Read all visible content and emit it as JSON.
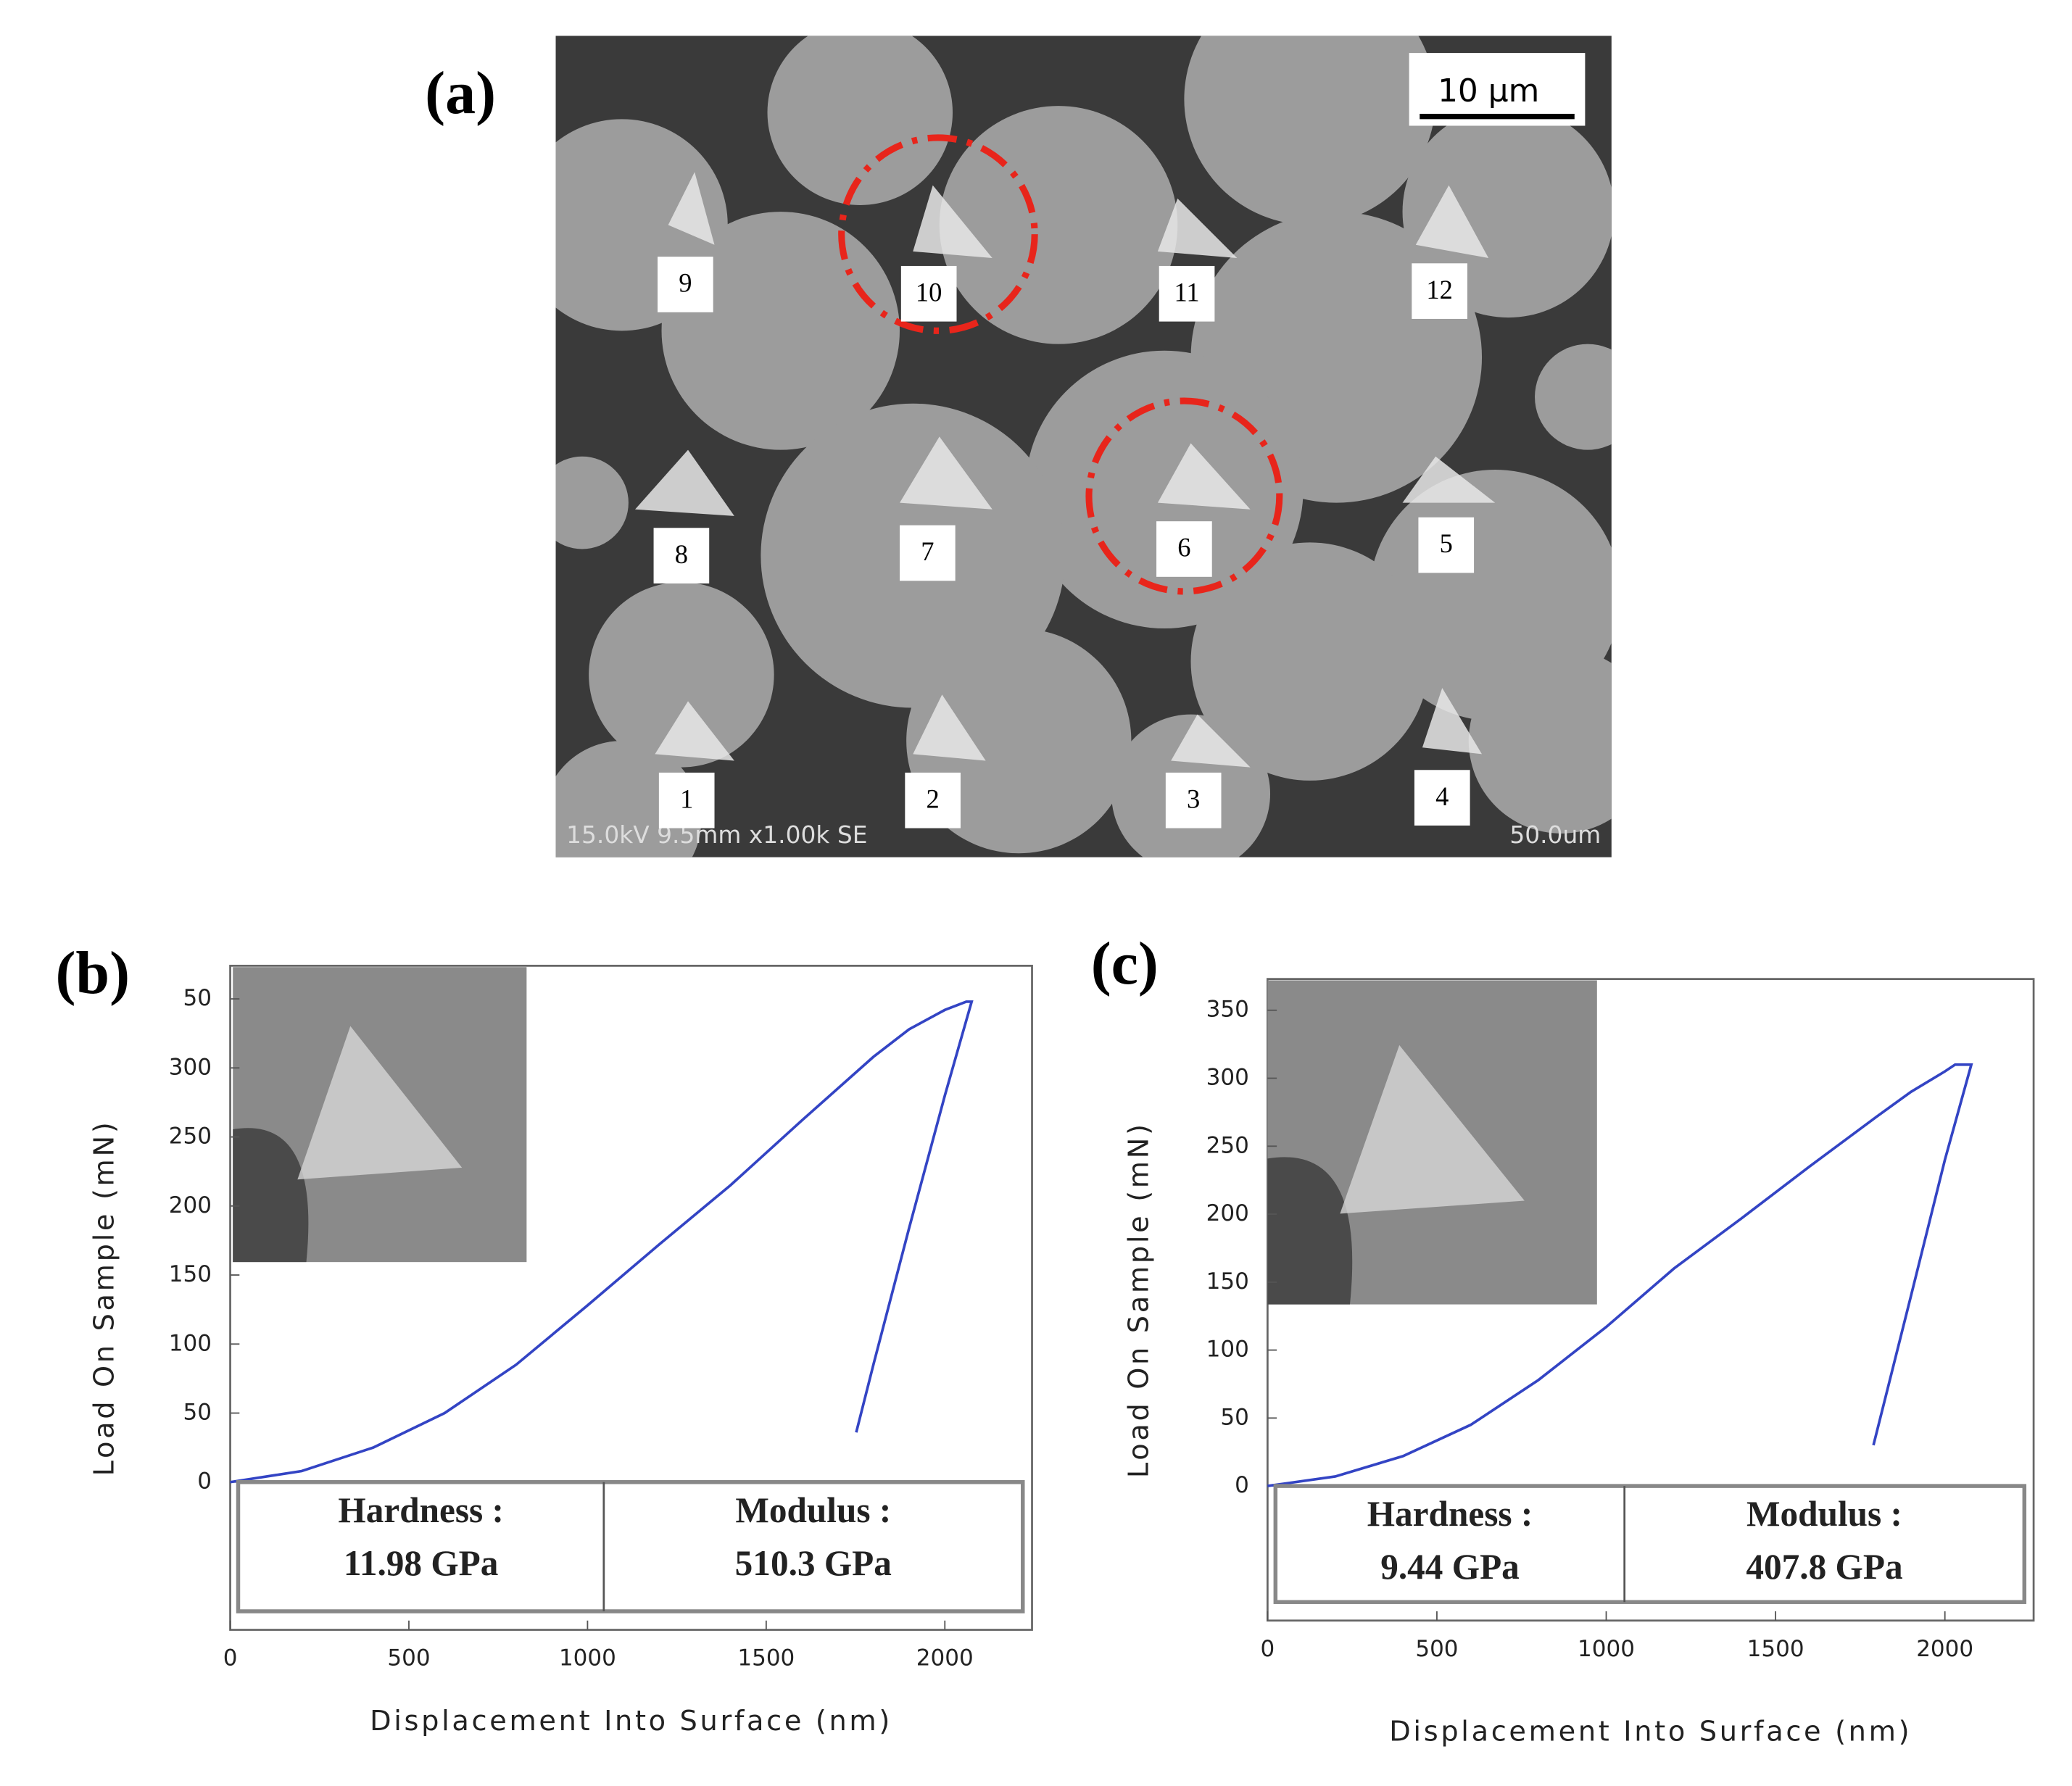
{
  "panel_a": {
    "label": "(a)",
    "scale_bar": "10 μm",
    "footer_left": "15.0kV 9.5mm x1.00k SE",
    "footer_right": "50.0um",
    "markers": [
      "9",
      "10",
      "11",
      "12",
      "8",
      "7",
      "6",
      "5",
      "1",
      "2",
      "3",
      "4"
    ]
  },
  "chart_data": [
    {
      "type": "line",
      "panel_label": "(b)",
      "x_label": "Displacement Into Surface (nm)",
      "y_label": "Load On Sample (mN)",
      "x": [
        0,
        200,
        400,
        600,
        800,
        1000,
        1200,
        1400,
        1600,
        1800,
        1900,
        2000,
        2060,
        2075,
        2000,
        1900,
        1800,
        1752
      ],
      "values": [
        0,
        8,
        25,
        50,
        85,
        128,
        172,
        215,
        262,
        308,
        328,
        342,
        348,
        348,
        280,
        184,
        85,
        36
      ],
      "color": "#3344c4",
      "xlim": [
        0,
        2244
      ],
      "ylim": [
        -107,
        374
      ],
      "xticks": [
        0,
        500,
        1000,
        1500,
        2000
      ],
      "yticks": [
        0,
        50,
        100,
        150,
        200,
        250,
        300,
        {
          "value": 350,
          "label": "50"
        }
      ],
      "table": [
        [
          "Hardness :",
          "11.98 GPa"
        ],
        [
          "Modulus :",
          "510.3 GPa"
        ]
      ]
    },
    {
      "type": "line",
      "panel_label": "(c)",
      "x_label": "Displacement Into Surface (nm)",
      "y_label": "Load On Sample (mN)",
      "x": [
        0,
        200,
        400,
        600,
        800,
        1000,
        1200,
        1400,
        1600,
        1800,
        1900,
        2000,
        2030,
        2078,
        2000,
        1900,
        1789
      ],
      "values": [
        0,
        7,
        22,
        45,
        78,
        117,
        160,
        197,
        235,
        272,
        290,
        305,
        310,
        310,
        240,
        140,
        30
      ],
      "color": "#3344c4",
      "xlim": [
        0,
        2262
      ],
      "ylim": [
        -99,
        373
      ],
      "xticks": [
        0,
        500,
        1000,
        1500,
        2000
      ],
      "yticks": [
        0,
        50,
        100,
        150,
        200,
        250,
        300,
        350
      ],
      "table": [
        [
          "Hardness :",
          "9.44 GPa"
        ],
        [
          "Modulus :",
          "407.8 GPa"
        ]
      ]
    }
  ]
}
